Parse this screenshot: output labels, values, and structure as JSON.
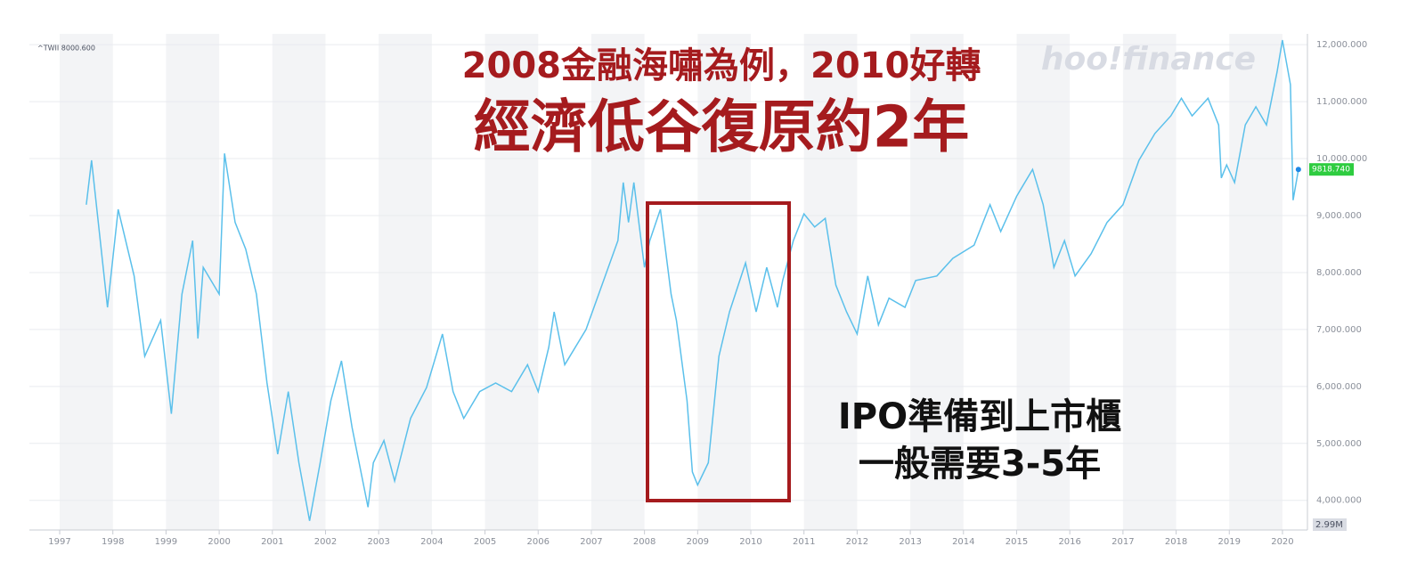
{
  "chart_data": {
    "type": "line",
    "title": "2008金融海嘯為例，2010好轉",
    "subtitle": "經濟低谷復原約2年",
    "annotation_lines": [
      "IPO準備到上市櫃",
      "一般需要3-5年"
    ],
    "legend_label": "^TWII 8000.600",
    "watermark": "hoo!finance",
    "last_label": "9818.740",
    "volume_label": "2.99M",
    "series": [
      {
        "name": "^TWII",
        "color": "#5bc0eb",
        "x": [
          1997.5,
          1997.6,
          1997.9,
          1998.1,
          1998.4,
          1998.6,
          1998.9,
          1999.1,
          1999.3,
          1999.5,
          1999.6,
          1999.7,
          2000.0,
          2000.1,
          2000.3,
          2000.5,
          2000.7,
          2000.9,
          2001.0,
          2001.1,
          2001.3,
          2001.5,
          2001.7,
          2001.9,
          2002.1,
          2002.3,
          2002.5,
          2002.8,
          2002.9,
          2003.1,
          2003.3,
          2003.6,
          2003.9,
          2004.2,
          2004.4,
          2004.6,
          2004.9,
          2005.2,
          2005.5,
          2005.8,
          2006.0,
          2006.2,
          2006.3,
          2006.5,
          2006.9,
          2007.2,
          2007.5,
          2007.6,
          2007.7,
          2007.8,
          2008.0,
          2008.1,
          2008.3,
          2008.5,
          2008.6,
          2008.8,
          2008.9,
          2009.0,
          2009.2,
          2009.4,
          2009.6,
          2009.9,
          2010.1,
          2010.3,
          2010.5,
          2010.6,
          2010.8,
          2011.0,
          2011.2,
          2011.4,
          2011.6,
          2011.8,
          2012.0,
          2012.2,
          2012.4,
          2012.6,
          2012.9,
          2013.1,
          2013.5,
          2013.8,
          2014.2,
          2014.5,
          2014.7,
          2015.0,
          2015.3,
          2015.5,
          2015.7,
          2015.9,
          2016.1,
          2016.4,
          2016.7,
          2017.0,
          2017.3,
          2017.6,
          2017.9,
          2018.1,
          2018.3,
          2018.6,
          2018.8,
          2018.85,
          2018.95,
          2019.1,
          2019.3,
          2019.5,
          2019.7,
          2019.9,
          2020.0,
          2020.15,
          2020.2,
          2020.3
        ],
        "values": [
          9190,
          9970,
          7390,
          9110,
          7940,
          6530,
          7160,
          5520,
          7620,
          8560,
          6840,
          8090,
          7620,
          10090,
          8880,
          8410,
          7620,
          6060,
          5440,
          4810,
          5910,
          4660,
          3640,
          4660,
          5750,
          6450,
          5280,
          3880,
          4660,
          5050,
          4340,
          5440,
          5980,
          6920,
          5910,
          5440,
          5910,
          6060,
          5910,
          6380,
          5910,
          6690,
          7310,
          6380,
          7000,
          7780,
          8560,
          9580,
          8880,
          9580,
          8090,
          8560,
          9110,
          7620,
          7160,
          5750,
          4500,
          4270,
          4660,
          6530,
          7310,
          8170,
          7310,
          8090,
          7390,
          7860,
          8560,
          9030,
          8800,
          8950,
          7780,
          7310,
          6920,
          7940,
          7080,
          7550,
          7390,
          7860,
          7940,
          8250,
          8480,
          9190,
          8720,
          9340,
          9810,
          9190,
          8090,
          8560,
          7940,
          8330,
          8880,
          9190,
          9970,
          10440,
          10750,
          11060,
          10750,
          11060,
          10590,
          9660,
          9890,
          9580,
          10590,
          10910,
          10590,
          11530,
          12080,
          11300,
          9270,
          9810
        ]
      }
    ],
    "xlim": [
      1996.43,
      2020.47
    ],
    "xticks": [
      1997,
      1998,
      1999,
      2000,
      2001,
      2002,
      2003,
      2004,
      2005,
      2006,
      2007,
      2008,
      2009,
      2010,
      2011,
      2012,
      2013,
      2014,
      2015,
      2016,
      2017,
      2018,
      2019,
      2020
    ],
    "ylim": [
      3480,
      12190
    ],
    "yticks": [
      {
        "value": 4000,
        "label": "4,000.000"
      },
      {
        "value": 5000,
        "label": "5,000.000"
      },
      {
        "value": 6000,
        "label": "6,000.000"
      },
      {
        "value": 7000,
        "label": "7,000.000"
      },
      {
        "value": 8000,
        "label": "8,000.000"
      },
      {
        "value": 9000,
        "label": "9,000.000"
      },
      {
        "value": 10000,
        "label": "10,000.000"
      },
      {
        "value": 11000,
        "label": "11,000.000"
      },
      {
        "value": 12000,
        "label": "12,000.000"
      }
    ],
    "grid": true
  }
}
